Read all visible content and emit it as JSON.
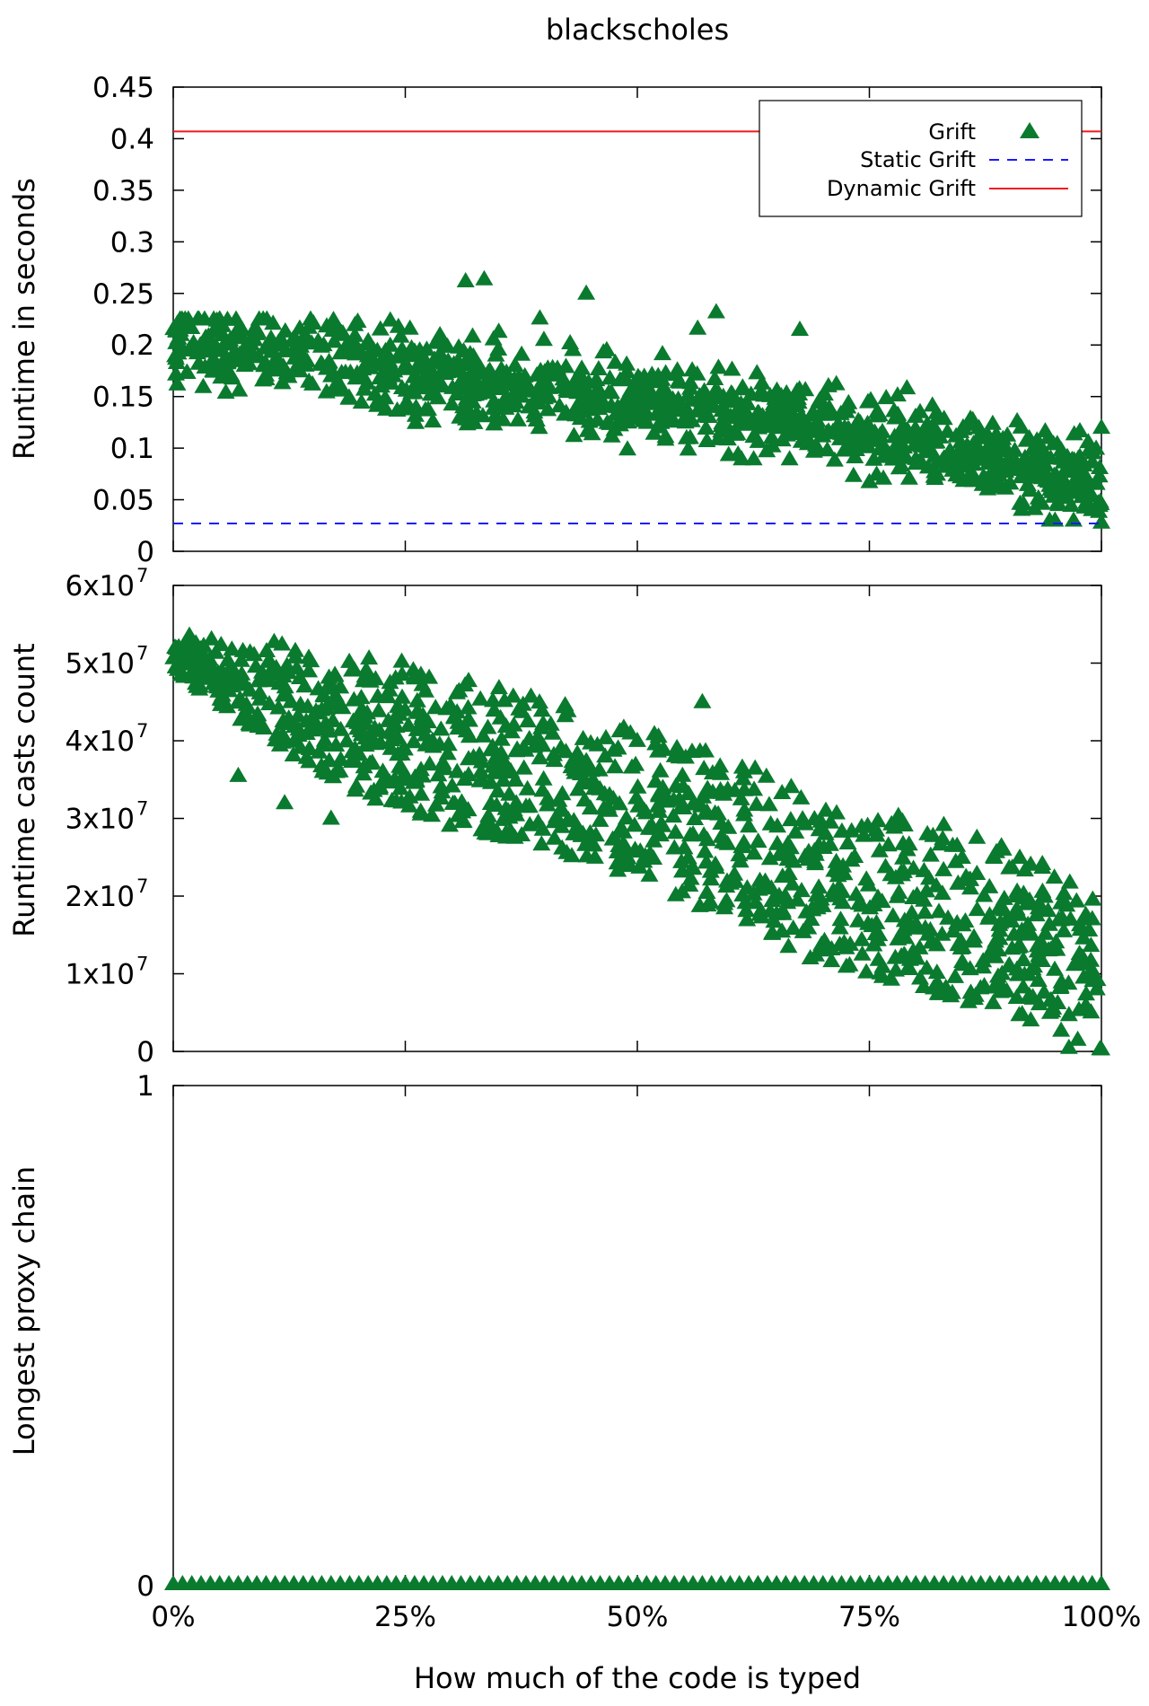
{
  "colors": {
    "grift": "#0a7a2e",
    "static_grift": "#1a1aff",
    "dynamic_grift": "#ee1c1c",
    "axis": "#000000"
  },
  "chart_data": [
    {
      "type": "scatter",
      "title": "blackscholes",
      "xlabel": "How much of the code is typed",
      "ylabel": "Runtime in seconds",
      "x_unit": "percent of code typed",
      "xlim": [
        0,
        100
      ],
      "ylim": [
        0,
        0.45
      ],
      "yticks": [
        "0",
        "0.05",
        "0.1",
        "0.15",
        "0.2",
        "0.25",
        "0.3",
        "0.35",
        "0.4",
        "0.45"
      ],
      "grid": false,
      "legend_position": "top-right",
      "legend": [
        "Grift",
        "Static Grift",
        "Dynamic Grift"
      ],
      "series": [
        {
          "name": "Grift",
          "marker": "triangle",
          "trend": [
            [
              0,
              0.205
            ],
            [
              10,
              0.195
            ],
            [
              20,
              0.18
            ],
            [
              30,
              0.165
            ],
            [
              40,
              0.155
            ],
            [
              50,
              0.145
            ],
            [
              60,
              0.135
            ],
            [
              70,
              0.125
            ],
            [
              80,
              0.11
            ],
            [
              90,
              0.09
            ],
            [
              100,
              0.065
            ]
          ],
          "outliers": [
            [
              31.5,
              0.262
            ],
            [
              33.5,
              0.264
            ],
            [
              44.5,
              0.25
            ],
            [
              58.5,
              0.232
            ],
            [
              39.5,
              0.226
            ],
            [
              56.5,
              0.216
            ],
            [
              67.5,
              0.215
            ],
            [
              95,
              0.03
            ],
            [
              97,
              0.03
            ],
            [
              100,
              0.028
            ],
            [
              100,
              0.12
            ]
          ]
        },
        {
          "name": "Static Grift",
          "style": "dashed",
          "value": 0.027
        },
        {
          "name": "Dynamic Grift",
          "style": "solid",
          "value": 0.407
        }
      ]
    },
    {
      "type": "scatter",
      "ylabel": "Runtime casts count",
      "x_unit": "percent of code typed",
      "xlim": [
        0,
        100
      ],
      "ylim": [
        0,
        60000000
      ],
      "yticks": [
        {
          "mant": "0",
          "exp": ""
        },
        {
          "mant": "1x10",
          "exp": "7"
        },
        {
          "mant": "2x10",
          "exp": "7"
        },
        {
          "mant": "3x10",
          "exp": "7"
        },
        {
          "mant": "4x10",
          "exp": "7"
        },
        {
          "mant": "5x10",
          "exp": "7"
        },
        {
          "mant": "6x10",
          "exp": "7"
        }
      ],
      "series": [
        {
          "name": "Grift",
          "marker": "triangle",
          "upper_envelope": [
            [
              0,
              54000000
            ],
            [
              10,
              53000000
            ],
            [
              20,
              52000000
            ],
            [
              28,
              50000000
            ],
            [
              40,
              46000000
            ],
            [
              50,
              42000000
            ],
            [
              60,
              38000000
            ],
            [
              70,
              34000000
            ],
            [
              80,
              31000000
            ],
            [
              90,
              27000000
            ],
            [
              100,
              21000000
            ]
          ],
          "lower_envelope": [
            [
              0,
              49000000
            ],
            [
              10,
              40000000
            ],
            [
              20,
              33000000
            ],
            [
              30,
              29000000
            ],
            [
              40,
              26000000
            ],
            [
              50,
              22000000
            ],
            [
              60,
              17000000
            ],
            [
              70,
              11000000
            ],
            [
              80,
              8000000
            ],
            [
              90,
              5000000
            ],
            [
              100,
              0
            ]
          ],
          "outliers": [
            [
              57,
              45000000
            ],
            [
              17,
              30000000
            ],
            [
              12,
              32000000
            ],
            [
              7,
              35500000
            ],
            [
              96.5,
              500000
            ],
            [
              100,
              300000
            ]
          ]
        }
      ]
    },
    {
      "type": "scatter",
      "ylabel": "Longest proxy chain",
      "xlabel": "How much of the code is typed",
      "x_unit": "percent of code typed",
      "xlim": [
        0,
        100
      ],
      "xticks": [
        "0%",
        "25%",
        "50%",
        "75%",
        "100%"
      ],
      "ylim": [
        0,
        1
      ],
      "yticks": [
        "0",
        "1"
      ],
      "series": [
        {
          "name": "Grift",
          "marker": "triangle",
          "constant_value": 0,
          "x_range": [
            0,
            100
          ]
        }
      ]
    }
  ]
}
